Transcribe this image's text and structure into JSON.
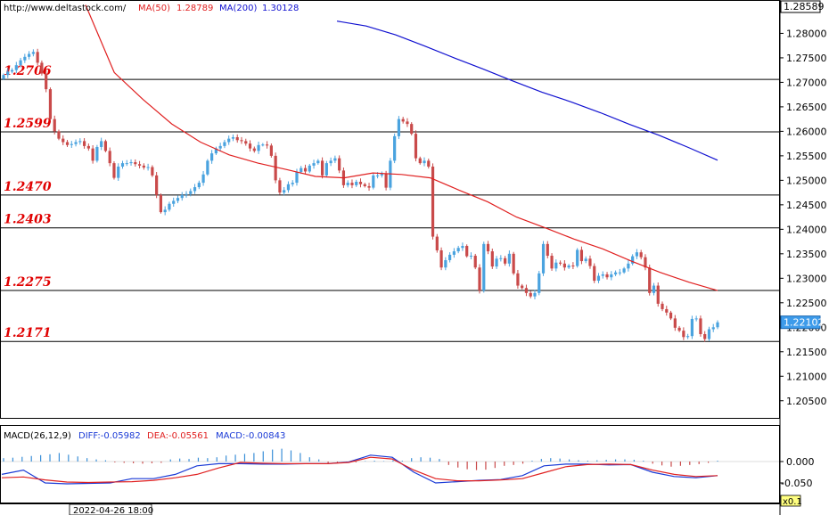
{
  "header": {
    "url": "http://www.deltastock.com/",
    "ma50_label": "MA(50)",
    "ma50_value": "1.28789",
    "ma200_label": "MA(200)",
    "ma200_value": "1.30128"
  },
  "colors": {
    "up_candle": "#4aa3df",
    "down_candle": "#c94a4a",
    "ma50": "#e02020",
    "ma200": "#1010d0",
    "level_line": "#000000",
    "level_label": "#e00000",
    "macd_diff": "#1a3ad6",
    "macd_dea": "#e02020",
    "macd_hist_pos": "#3a8fd8",
    "macd_hist_neg": "#c94a4a"
  },
  "price_axis": {
    "ticks": [
      "1.28000",
      "1.27500",
      "1.27000",
      "1.26500",
      "1.26000",
      "1.25500",
      "1.25000",
      "1.24500",
      "1.24000",
      "1.23500",
      "1.23000",
      "1.22500",
      "1.22000",
      "1.21500",
      "1.21000",
      "1.20500"
    ],
    "top_label": "1.28589",
    "current_label": "1.22102"
  },
  "macd_panel": {
    "title": "MACD(26,12,9)",
    "diff_text": "DIFF:-0.05982",
    "dea_text": "DEA:-0.05561",
    "macd_text": "MACD:-0.00843",
    "ticks": [
      "0.000",
      "-0.050"
    ],
    "scale_label": "x0.1"
  },
  "time_axis": {
    "label": "2022-04-26 18:00"
  },
  "chart_data": {
    "type": "candlestick",
    "ylim": [
      1.2015,
      1.2859
    ],
    "levels": [
      {
        "value": 1.2706,
        "label": "1.2706"
      },
      {
        "value": 1.2599,
        "label": "1.2599"
      },
      {
        "value": 1.247,
        "label": "1.2470"
      },
      {
        "value": 1.2403,
        "label": "1.2403"
      },
      {
        "value": 1.2275,
        "label": "1.2275"
      },
      {
        "value": 1.2171,
        "label": "1.2171"
      }
    ],
    "close": [
      1.2715,
      1.2722,
      1.2725,
      1.2735,
      1.2745,
      1.2752,
      1.2758,
      1.2762,
      1.274,
      1.2718,
      1.2686,
      1.2625,
      1.26,
      1.2585,
      1.2578,
      1.2572,
      1.2574,
      1.2578,
      1.258,
      1.257,
      1.2565,
      1.254,
      1.2568,
      1.258,
      1.256,
      1.2535,
      1.2505,
      1.2528,
      1.2535,
      1.2535,
      1.2537,
      1.2533,
      1.253,
      1.2526,
      1.2527,
      1.251,
      1.247,
      1.2435,
      1.244,
      1.2452,
      1.2458,
      1.2464,
      1.247,
      1.2472,
      1.2478,
      1.2486,
      1.2495,
      1.2512,
      1.254,
      1.2555,
      1.2565,
      1.257,
      1.2578,
      1.2585,
      1.2588,
      1.2582,
      1.258,
      1.2575,
      1.2565,
      1.256,
      1.2572,
      1.2573,
      1.2571,
      1.255,
      1.25,
      1.2475,
      1.248,
      1.2492,
      1.2495,
      1.2517,
      1.2525,
      1.2518,
      1.253,
      1.2535,
      1.254,
      1.251,
      1.2535,
      1.254,
      1.2545,
      1.252,
      1.249,
      1.2495,
      1.249,
      1.2497,
      1.2492,
      1.2488,
      1.2485,
      1.251,
      1.251,
      1.2513,
      1.2485,
      1.254,
      1.259,
      1.2625,
      1.262,
      1.2615,
      1.2595,
      1.2545,
      1.2535,
      1.254,
      1.2528,
      1.2385,
      1.2357,
      1.2322,
      1.2337,
      1.2348,
      1.2355,
      1.2362,
      1.2366,
      1.2345,
      1.2346,
      1.2322,
      1.2275,
      1.237,
      1.2355,
      1.2324,
      1.234,
      1.2341,
      1.233,
      1.235,
      1.231,
      1.2285,
      1.228,
      1.227,
      1.2263,
      1.227,
      1.231,
      1.237,
      1.2346,
      1.232,
      1.2332,
      1.233,
      1.2322,
      1.2326,
      1.2325,
      1.2358,
      1.2335,
      1.234,
      1.2325,
      1.2295,
      1.2305,
      1.2308,
      1.2302,
      1.2308,
      1.2312,
      1.2312,
      1.232,
      1.233,
      1.2345,
      1.2353,
      1.2343,
      1.2322,
      1.227,
      1.2285,
      1.2248,
      1.2237,
      1.223,
      1.2218,
      1.2199,
      1.2193,
      1.218,
      1.2182,
      1.2217,
      1.2218,
      1.2186,
      1.2176,
      1.2196,
      1.22,
      1.221
    ],
    "ma50": [
      1.2858,
      1.272,
      1.2665,
      1.2615,
      1.2578,
      1.2552,
      1.2535,
      1.2522,
      1.2508,
      1.2505,
      1.2515,
      1.2512,
      1.2505,
      1.248,
      1.2456,
      1.2425,
      1.2403,
      1.238,
      1.236,
      1.2335,
      1.2312,
      1.2292,
      1.2275
    ],
    "ma200": [
      1.2825,
      1.2815,
      1.2797,
      1.2774,
      1.275,
      1.2727,
      1.2703,
      1.268,
      1.266,
      1.2638,
      1.2614,
      1.2592,
      1.2567,
      1.2541
    ],
    "macd_diff": [
      -0.03,
      -0.02,
      -0.05,
      -0.052,
      -0.051,
      -0.05,
      -0.04,
      -0.04,
      -0.03,
      -0.01,
      -0.005,
      -0.005,
      -0.006,
      -0.006,
      -0.005,
      -0.005,
      -0.001,
      0.015,
      0.01,
      -0.025,
      -0.05,
      -0.047,
      -0.044,
      -0.042,
      -0.033,
      -0.01,
      -0.006,
      -0.006,
      -0.008,
      -0.007,
      -0.025,
      -0.035,
      -0.038,
      -0.033
    ],
    "macd_dea": [
      -0.038,
      -0.036,
      -0.043,
      -0.048,
      -0.049,
      -0.048,
      -0.047,
      -0.044,
      -0.038,
      -0.03,
      -0.015,
      -0.002,
      -0.004,
      -0.005,
      -0.005,
      -0.005,
      -0.002,
      0.01,
      0.006,
      -0.02,
      -0.04,
      -0.045,
      -0.045,
      -0.043,
      -0.04,
      -0.026,
      -0.012,
      -0.007,
      -0.006,
      -0.007,
      -0.02,
      -0.03,
      -0.035,
      -0.033
    ],
    "macd_hist": [
      0.008,
      0.009,
      0.011,
      0.013,
      0.015,
      0.017,
      0.02,
      0.016,
      0.012,
      0.008,
      0.005,
      0.003,
      -0.002,
      -0.003,
      -0.004,
      -0.005,
      -0.004,
      -0.003,
      0.005,
      0.007,
      0.006,
      0.009,
      0.008,
      0.01,
      0.014,
      0.016,
      0.018,
      0.02,
      0.024,
      0.028,
      0.03,
      0.026,
      0.02,
      0.01,
      0.005,
      -0.005,
      -0.004,
      -0.003,
      -0.002,
      0.001,
      0.002,
      0.001,
      0.003,
      0.002,
      0.008,
      0.01,
      0.009,
      0.006,
      -0.008,
      -0.014,
      -0.018,
      -0.02,
      -0.019,
      -0.015,
      -0.01,
      -0.008,
      -0.005,
      0.002,
      0.006,
      0.008,
      0.007,
      0.005,
      0.003,
      0.002,
      0.003,
      0.004,
      0.005,
      0.005,
      0.004,
      0.002,
      -0.005,
      -0.009,
      -0.012,
      -0.01,
      -0.008,
      -0.006,
      -0.003,
      0.002
    ]
  }
}
